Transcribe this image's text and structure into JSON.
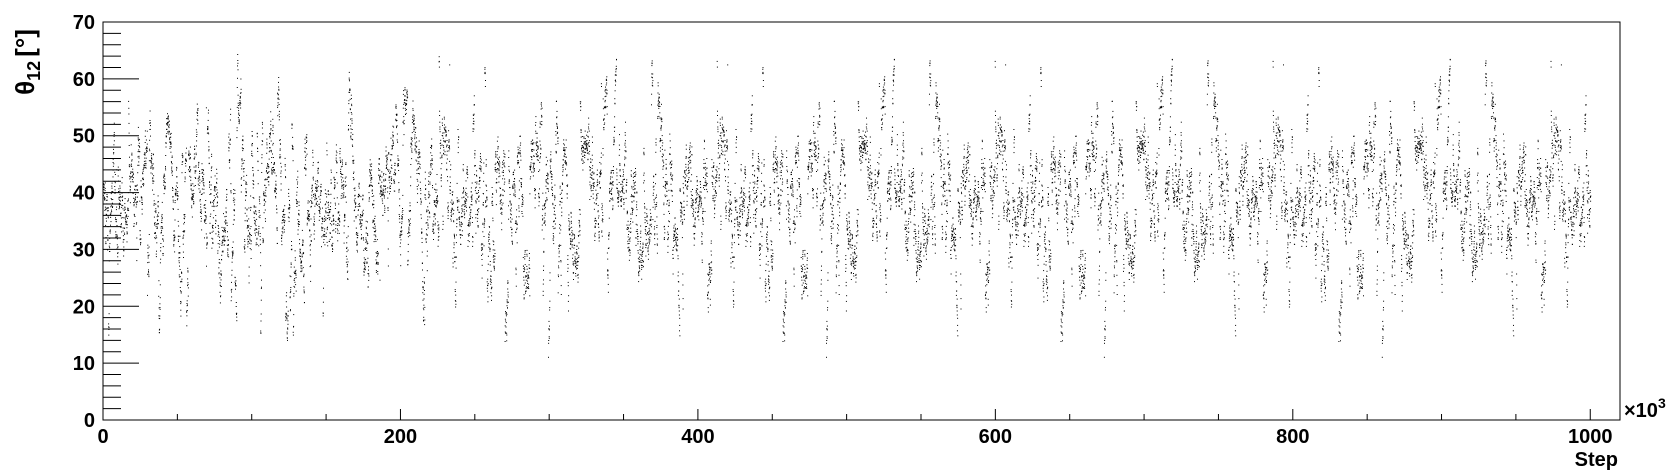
{
  "chart_data": {
    "type": "scatter",
    "title": "",
    "xlabel": "Step",
    "ylabel": {
      "symbol": "θ",
      "subscript": "12",
      "unit": "[°]"
    },
    "x_multiplier": "×10",
    "x_multiplier_exponent": "3",
    "xlim": [
      0,
      1020
    ],
    "ylim": [
      0,
      70
    ],
    "x_ticks": [
      0,
      200,
      400,
      600,
      800,
      1000
    ],
    "y_ticks": [
      0,
      10,
      20,
      30,
      40,
      50,
      60,
      70
    ],
    "grid": false,
    "legend": "none",
    "series": [
      {
        "marker_color": "#000000",
        "x_range": [
          0,
          1000
        ],
        "mean": 38,
        "std_dev": 8,
        "min": 5,
        "max": 65
      }
    ],
    "colors": {
      "axis": "#000000",
      "points": "#000000",
      "background": "#ffffff"
    }
  }
}
